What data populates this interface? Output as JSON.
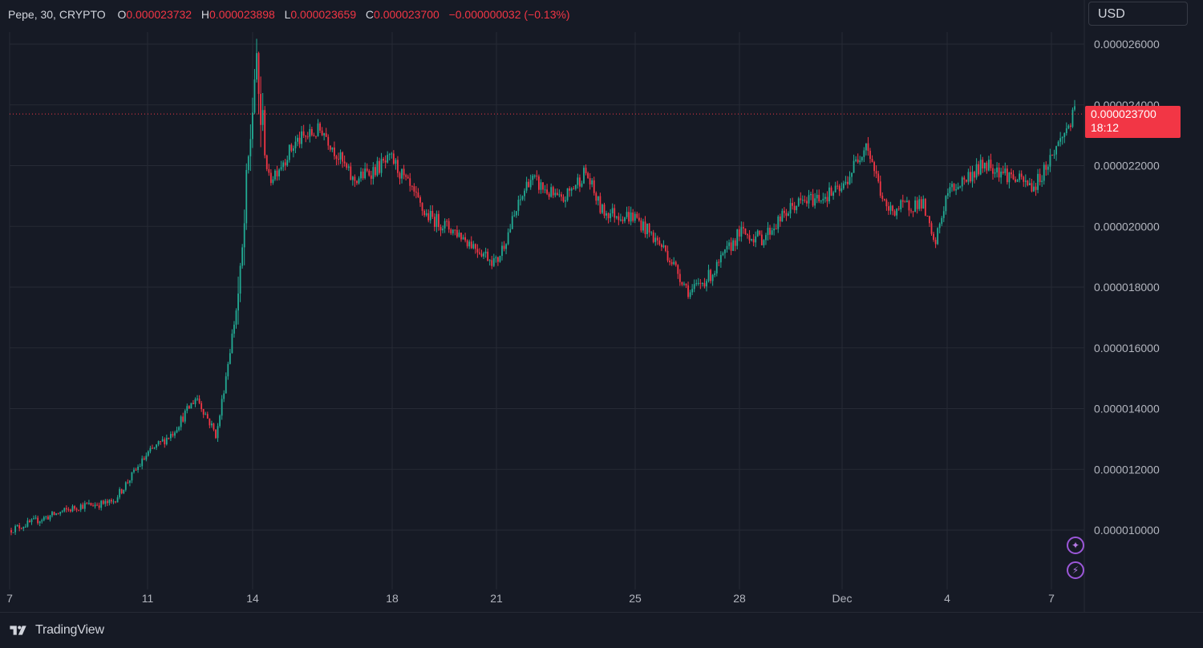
{
  "legend": {
    "symbol": "Pepe, 30, CRYPTO",
    "open_label": "O",
    "open": "0.000023732",
    "high_label": "H",
    "high": "0.000023898",
    "low_label": "L",
    "low": "0.000023659",
    "close_label": "C",
    "close": "0.000023700",
    "change": "−0.000000032 (−0.13%)"
  },
  "currency_button": {
    "label": "USD"
  },
  "last_price_tag": {
    "price": "0.000023700",
    "countdown": "18:12"
  },
  "side_buttons": [
    {
      "icon": "sparkle-icon"
    },
    {
      "icon": "lightning-icon"
    }
  ],
  "brand": {
    "name": "TradingView"
  },
  "colors": {
    "up": "#22ab94",
    "down": "#f23645",
    "background": "#161a25",
    "grid": "#262a35",
    "text": "#b2b5be",
    "accent_purple": "#9c57d9"
  },
  "chart_data": {
    "type": "candlestick",
    "symbol": "Pepe",
    "interval": "30",
    "exchange": "CRYPTO",
    "currency": "USD",
    "y_axis": {
      "ticks": [
        2.6e-05,
        2.4e-05,
        2.2e-05,
        2e-05,
        1.8e-05,
        1.6e-05,
        1.4e-05,
        1.2e-05,
        1e-05
      ],
      "tick_labels": [
        "0.000026000",
        "0.000024000",
        "0.000022000",
        "0.000020000",
        "0.000018000",
        "0.000016000",
        "0.000014000",
        "0.000012000",
        "0.000010000"
      ],
      "range": [
        8.5e-06,
        2.7e-05
      ]
    },
    "x_axis": {
      "tick_labels": [
        "7",
        "11",
        "14",
        "18",
        "21",
        "25",
        "28",
        "Dec",
        "4",
        "7"
      ],
      "range_days": [
        "Nov 7",
        "Dec 7"
      ]
    },
    "last_price": 2.37e-05,
    "grid": true,
    "price_path": [
      [
        "Nov 7",
        1e-05
      ],
      [
        "Nov 8",
        1.04e-05
      ],
      [
        "Nov 9",
        1.08e-05
      ],
      [
        "Nov 10",
        1.09e-05
      ],
      [
        "Nov 11",
        1.25e-05
      ],
      [
        "Nov 12",
        1.32e-05
      ],
      [
        "Nov 12 PM",
        1.44e-05
      ],
      [
        "Nov 13",
        1.31e-05
      ],
      [
        "Nov 13 PM",
        1.82e-05
      ],
      [
        "Nov 14",
        2.52e-05
      ],
      [
        "Nov 14 PM",
        2.15e-05
      ],
      [
        "Nov 15",
        2.28e-05
      ],
      [
        "Nov 16",
        2.32e-05
      ],
      [
        "Nov 17",
        2.15e-05
      ],
      [
        "Nov 18",
        2.22e-05
      ],
      [
        "Nov 19",
        2.04e-05
      ],
      [
        "Nov 20",
        1.98e-05
      ],
      [
        "Nov 21",
        1.88e-05
      ],
      [
        "Nov 22",
        2.16e-05
      ],
      [
        "Nov 23",
        2.08e-05
      ],
      [
        "Nov 24",
        2.18e-05
      ],
      [
        "Nov 24 PM",
        2.05e-05
      ],
      [
        "Nov 25",
        2.03e-05
      ],
      [
        "Nov 26",
        1.92e-05
      ],
      [
        "Nov 26 PM",
        1.78e-05
      ],
      [
        "Nov 27",
        1.85e-05
      ],
      [
        "Nov 28",
        1.98e-05
      ],
      [
        "Nov 29",
        1.96e-05
      ],
      [
        "Nov 30",
        2.07e-05
      ],
      [
        "Dec 1",
        2.12e-05
      ],
      [
        "Dec 1 PM",
        2.28e-05
      ],
      [
        "Dec 2",
        2.05e-05
      ],
      [
        "Dec 3",
        2.08e-05
      ],
      [
        "Dec 3 PM",
        1.93e-05
      ],
      [
        "Dec 4",
        2.11e-05
      ],
      [
        "Dec 5",
        2.21e-05
      ],
      [
        "Dec 6",
        2.15e-05
      ],
      [
        "Dec 6 PM",
        2.13e-05
      ],
      [
        "Dec 7",
        2.37e-05
      ]
    ]
  }
}
